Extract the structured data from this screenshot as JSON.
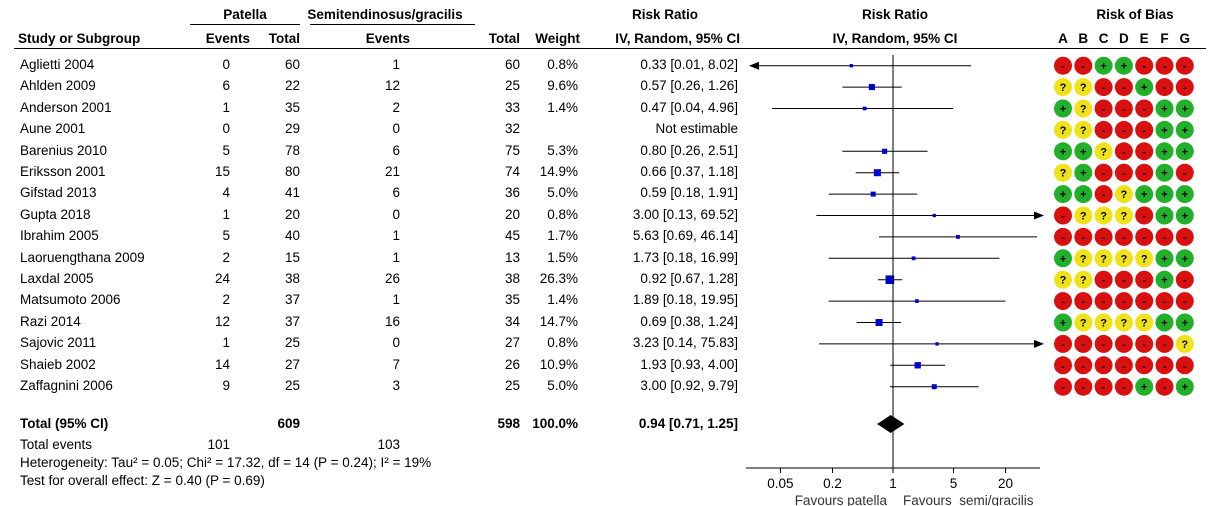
{
  "header": {
    "group1": "Patella",
    "group2": "Semitendinosus/gracilis",
    "rr_title": "Risk Ratio",
    "plot_title": "Risk Ratio",
    "bias_title": "Risk of Bias",
    "col_study": "Study or Subgroup",
    "col_events1": "Events",
    "col_total1": "Total",
    "col_events2": "Events",
    "col_total2": "Total",
    "col_weight": "Weight",
    "col_rr": "IV, Random, 95% CI",
    "col_plot": "IV, Random, 95% CI",
    "bias_letters": [
      "A",
      "B",
      "C",
      "D",
      "E",
      "F",
      "G"
    ]
  },
  "chart_data": {
    "type": "forest",
    "x_scale": "log",
    "xlim": [
      0.02,
      50
    ],
    "x_ticks": [
      0.05,
      0.2,
      1,
      5,
      20
    ],
    "x_tick_labels": [
      "0.05",
      "0.2",
      "1",
      "5",
      "20"
    ],
    "favours_left": "Favours patella",
    "favours_right": "Favours  semi/gracilis",
    "colors": {
      "square": "#0000cc",
      "diamond": "#000000",
      "low": "#22b02a",
      "unclear": "#f0e21a",
      "high": "#d91010"
    },
    "studies": [
      {
        "name": "Aglietti 2004",
        "e1": "0",
        "t1": "60",
        "e2": "1",
        "t2": "60",
        "weight": "0.8%",
        "rr_text": "0.33 [0.01, 8.02]",
        "rr": 0.33,
        "lo": 0.01,
        "hi": 8.02,
        "bias": [
          "-",
          "-",
          "+",
          "+",
          "-",
          "-",
          "-"
        ]
      },
      {
        "name": "Ahlden 2009",
        "e1": "6",
        "t1": "22",
        "e2": "12",
        "t2": "25",
        "weight": "9.6%",
        "rr_text": "0.57 [0.26, 1.26]",
        "rr": 0.57,
        "lo": 0.26,
        "hi": 1.26,
        "bias": [
          "?",
          "?",
          "-",
          "-",
          "+",
          "-",
          "-"
        ]
      },
      {
        "name": "Anderson 2001",
        "e1": "1",
        "t1": "35",
        "e2": "2",
        "t2": "33",
        "weight": "1.4%",
        "rr_text": "0.47 [0.04, 4.96]",
        "rr": 0.47,
        "lo": 0.04,
        "hi": 4.96,
        "bias": [
          "+",
          "?",
          "-",
          "-",
          "-",
          "+",
          "+"
        ]
      },
      {
        "name": "Aune 2001",
        "e1": "0",
        "t1": "29",
        "e2": "0",
        "t2": "32",
        "weight": "",
        "rr_text": "Not estimable",
        "rr": null,
        "lo": null,
        "hi": null,
        "bias": [
          "?",
          "?",
          "-",
          "-",
          "-",
          "+",
          "+"
        ]
      },
      {
        "name": "Barenius 2010",
        "e1": "5",
        "t1": "78",
        "e2": "6",
        "t2": "75",
        "weight": "5.3%",
        "rr_text": "0.80 [0.26, 2.51]",
        "rr": 0.8,
        "lo": 0.26,
        "hi": 2.51,
        "bias": [
          "+",
          "+",
          "?",
          "-",
          "-",
          "+",
          "+"
        ]
      },
      {
        "name": "Eriksson 2001",
        "e1": "15",
        "t1": "80",
        "e2": "21",
        "t2": "74",
        "weight": "14.9%",
        "rr_text": "0.66 [0.37, 1.18]",
        "rr": 0.66,
        "lo": 0.37,
        "hi": 1.18,
        "bias": [
          "?",
          "+",
          "-",
          "-",
          "-",
          "+",
          "-"
        ]
      },
      {
        "name": "Gifstad 2013",
        "e1": "4",
        "t1": "41",
        "e2": "6",
        "t2": "36",
        "weight": "5.0%",
        "rr_text": "0.59 [0.18, 1.91]",
        "rr": 0.59,
        "lo": 0.18,
        "hi": 1.91,
        "bias": [
          "+",
          "+",
          "-",
          "?",
          "+",
          "+",
          "+"
        ]
      },
      {
        "name": "Gupta 2018",
        "e1": "1",
        "t1": "20",
        "e2": "0",
        "t2": "20",
        "weight": "0.8%",
        "rr_text": "3.00 [0.13, 69.52]",
        "rr": 3.0,
        "lo": 0.13,
        "hi": 69.52,
        "bias": [
          "-",
          "?",
          "?",
          "?",
          "-",
          "+",
          "+"
        ]
      },
      {
        "name": "Ibrahim 2005",
        "e1": "5",
        "t1": "40",
        "e2": "1",
        "t2": "45",
        "weight": "1.7%",
        "rr_text": "5.63 [0.69, 46.14]",
        "rr": 5.63,
        "lo": 0.69,
        "hi": 46.14,
        "bias": [
          "-",
          "-",
          "-",
          "-",
          "-",
          "-",
          "-"
        ]
      },
      {
        "name": "Laoruengthana 2009",
        "e1": "2",
        "t1": "15",
        "e2": "1",
        "t2": "13",
        "weight": "1.5%",
        "rr_text": "1.73 [0.18, 16.99]",
        "rr": 1.73,
        "lo": 0.18,
        "hi": 16.99,
        "bias": [
          "+",
          "?",
          "?",
          "?",
          "?",
          "+",
          "+"
        ]
      },
      {
        "name": "Laxdal 2005",
        "e1": "24",
        "t1": "38",
        "e2": "26",
        "t2": "38",
        "weight": "26.3%",
        "rr_text": "0.92 [0.67, 1.28]",
        "rr": 0.92,
        "lo": 0.67,
        "hi": 1.28,
        "bias": [
          "?",
          "?",
          "-",
          "-",
          "-",
          "+",
          "-"
        ]
      },
      {
        "name": "Matsumoto 2006",
        "e1": "2",
        "t1": "37",
        "e2": "1",
        "t2": "35",
        "weight": "1.4%",
        "rr_text": "1.89 [0.18, 19.95]",
        "rr": 1.89,
        "lo": 0.18,
        "hi": 19.95,
        "bias": [
          "-",
          "-",
          "-",
          "-",
          "-",
          "-",
          "-"
        ]
      },
      {
        "name": "Razi 2014",
        "e1": "12",
        "t1": "37",
        "e2": "16",
        "t2": "34",
        "weight": "14.7%",
        "rr_text": "0.69 [0.38, 1.24]",
        "rr": 0.69,
        "lo": 0.38,
        "hi": 1.24,
        "bias": [
          "+",
          "?",
          "?",
          "?",
          "?",
          "+",
          "+"
        ]
      },
      {
        "name": "Sajovic 2011",
        "e1": "1",
        "t1": "25",
        "e2": "0",
        "t2": "27",
        "weight": "0.8%",
        "rr_text": "3.23 [0.14, 75.83]",
        "rr": 3.23,
        "lo": 0.14,
        "hi": 75.83,
        "bias": [
          "-",
          "-",
          "-",
          "-",
          "-",
          "-",
          "?"
        ]
      },
      {
        "name": "Shaieb 2002",
        "e1": "14",
        "t1": "27",
        "e2": "7",
        "t2": "26",
        "weight": "10.9%",
        "rr_text": "1.93 [0.93, 4.00]",
        "rr": 1.93,
        "lo": 0.93,
        "hi": 4.0,
        "bias": [
          "-",
          "-",
          "-",
          "-",
          "-",
          "-",
          "-"
        ]
      },
      {
        "name": "Zaffagnini 2006",
        "e1": "9",
        "t1": "25",
        "e2": "3",
        "t2": "25",
        "weight": "5.0%",
        "rr_text": "3.00 [0.92, 9.79]",
        "rr": 3.0,
        "lo": 0.92,
        "hi": 9.79,
        "bias": [
          "-",
          "-",
          "-",
          "-",
          "+",
          "-",
          "+"
        ]
      }
    ],
    "total": {
      "name": "Total (95% CI)",
      "t1": "609",
      "t2": "598",
      "weight": "100.0%",
      "rr_text": "0.94 [0.71, 1.25]",
      "rr": 0.94,
      "lo": 0.71,
      "hi": 1.25
    },
    "total_events": {
      "label": "Total events",
      "e1": "101",
      "e2": "103"
    },
    "heterogeneity": "Heterogeneity: Tau² = 0.05; Chi² = 17.32, df = 14 (P = 0.24); I² = 19%",
    "overall_effect": "Test for overall effect: Z = 0.40 (P = 0.69)"
  }
}
